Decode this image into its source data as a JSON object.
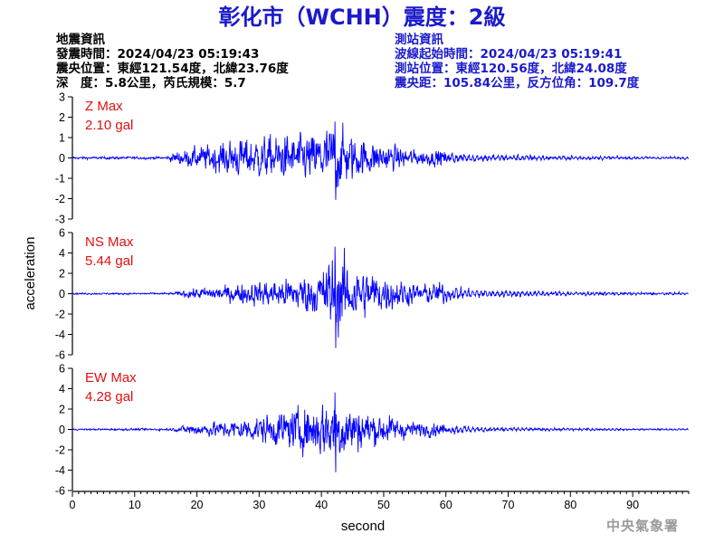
{
  "title": "彰化市（WCHH）震度：2級",
  "earthquake_info": {
    "heading": "地震資訊",
    "origin_time": "發震時間：2024/04/23 05:19:43",
    "epicenter": "震央位置：東經121.54度，北緯23.76度",
    "depth_magnitude": "深　度：5.8公里，芮氏規模：5.7"
  },
  "station_info": {
    "heading": "測站資訊",
    "wave_start": "波線起始時間：2024/04/23 05:19:41",
    "station_location": "測站位置：東經120.56度，北緯24.08度",
    "distance_azimuth": "震央距：105.84公里，反方位角：109.7度"
  },
  "credit": "中央氣象署",
  "colors": {
    "title": "#1a1acc",
    "trace": "#0000ff",
    "peak_label": "#e01010",
    "station_text": "#1a1acc"
  },
  "chart_data": {
    "type": "line",
    "xlabel": "second",
    "ylabel": "acceleration",
    "xlim": [
      0,
      99
    ],
    "xticks": [
      0,
      10,
      20,
      30,
      40,
      50,
      60,
      70,
      80,
      90
    ],
    "panels": [
      {
        "component": "Z",
        "label": "Z Max",
        "peak": "2.10 gal",
        "ylim": [
          -3,
          3
        ],
        "yticks": [
          3,
          2,
          1,
          0,
          -1,
          -2,
          -3
        ],
        "peak_value": 2.1,
        "envelope": [
          [
            0,
            0.08
          ],
          [
            15,
            0.08
          ],
          [
            17,
            0.45
          ],
          [
            22,
            0.8
          ],
          [
            27,
            1.2
          ],
          [
            33,
            1.35
          ],
          [
            38,
            1.4
          ],
          [
            42,
            2.1
          ],
          [
            46,
            1.2
          ],
          [
            50,
            0.85
          ],
          [
            56,
            0.45
          ],
          [
            60,
            0.5
          ],
          [
            64,
            0.3
          ],
          [
            75,
            0.22
          ],
          [
            90,
            0.12
          ],
          [
            99,
            0.1
          ]
        ]
      },
      {
        "component": "NS",
        "label": "NS Max",
        "peak": "5.44 gal",
        "ylim": [
          -6,
          6
        ],
        "yticks": [
          6,
          4,
          2,
          0,
          -2,
          -4,
          -6
        ],
        "peak_value": 5.44,
        "envelope": [
          [
            0,
            0.1
          ],
          [
            16,
            0.12
          ],
          [
            19,
            0.6
          ],
          [
            25,
            1.0
          ],
          [
            30,
            1.5
          ],
          [
            36,
            2.0
          ],
          [
            40,
            3.0
          ],
          [
            42,
            5.44
          ],
          [
            46,
            3.2
          ],
          [
            50,
            2.3
          ],
          [
            55,
            1.2
          ],
          [
            60,
            1.4
          ],
          [
            64,
            0.7
          ],
          [
            75,
            0.4
          ],
          [
            90,
            0.25
          ],
          [
            99,
            0.18
          ]
        ]
      },
      {
        "component": "EW",
        "label": "EW Max",
        "peak": "4.28 gal",
        "ylim": [
          -6,
          6
        ],
        "yticks": [
          6,
          4,
          2,
          0,
          -2,
          -4,
          -6
        ],
        "peak_value": 4.28,
        "envelope": [
          [
            0,
            0.1
          ],
          [
            16,
            0.15
          ],
          [
            19,
            0.7
          ],
          [
            24,
            1.0
          ],
          [
            30,
            1.6
          ],
          [
            36,
            2.5
          ],
          [
            40,
            3.4
          ],
          [
            42,
            4.28
          ],
          [
            46,
            2.6
          ],
          [
            50,
            1.8
          ],
          [
            55,
            0.9
          ],
          [
            60,
            0.8
          ],
          [
            65,
            0.4
          ],
          [
            75,
            0.25
          ],
          [
            90,
            0.16
          ],
          [
            99,
            0.14
          ]
        ]
      }
    ]
  }
}
